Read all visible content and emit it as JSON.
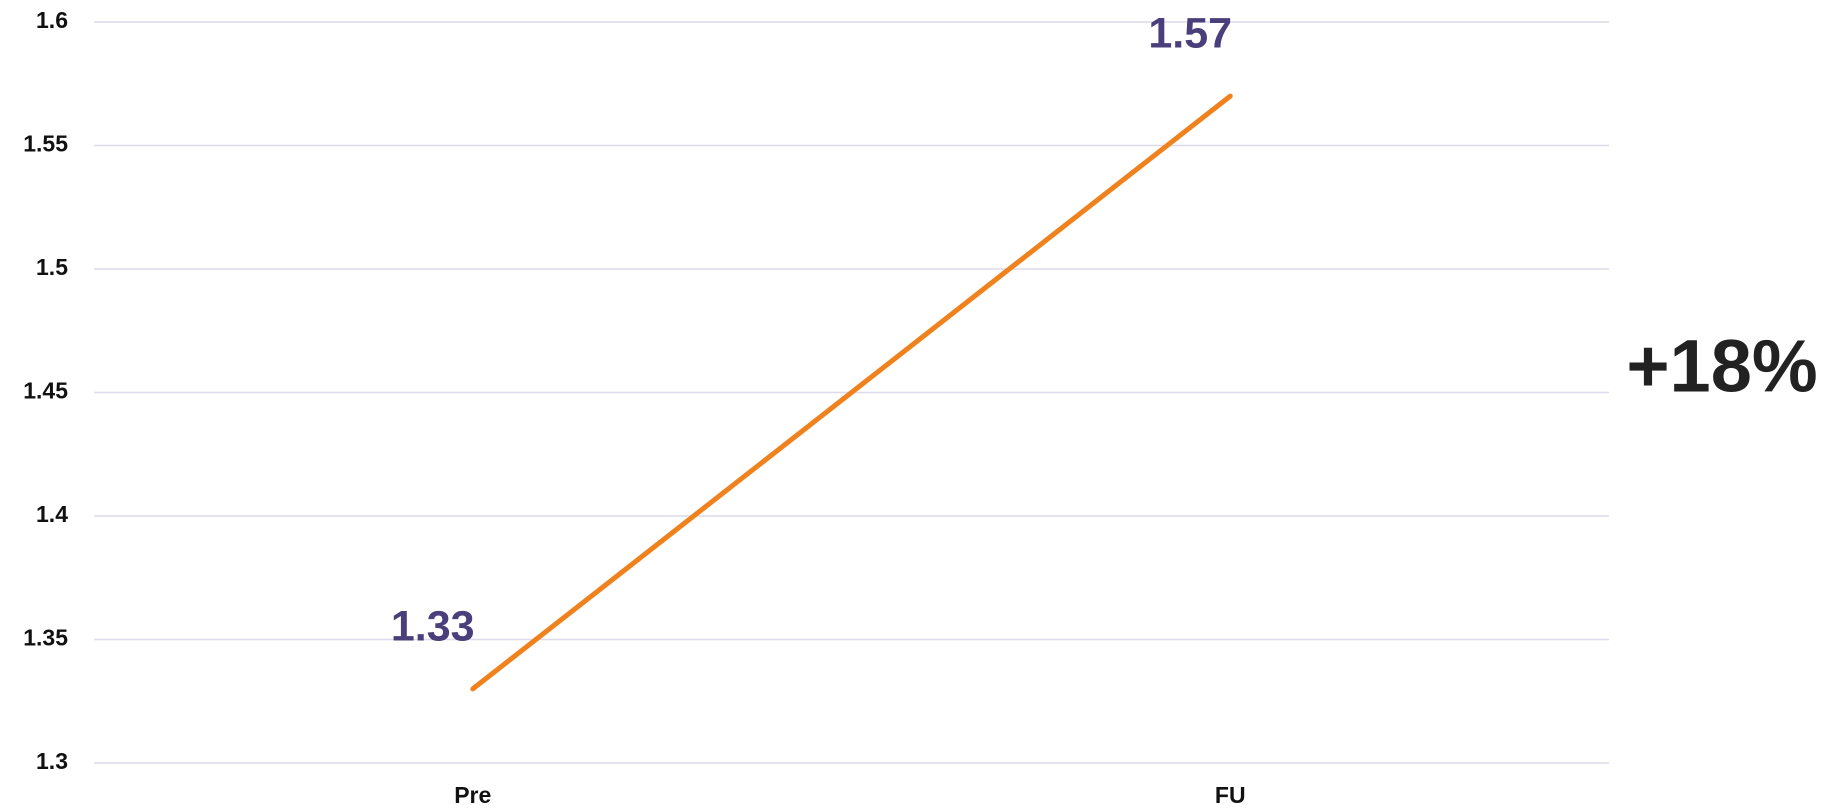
{
  "chart_data": {
    "type": "line",
    "categories": [
      "Pre",
      "FU"
    ],
    "series": [
      {
        "color": "#f0821e",
        "values": [
          1.33,
          1.57
        ]
      }
    ],
    "ylim": [
      1.3,
      1.6
    ],
    "yticks": [
      1.3,
      1.35,
      1.4,
      1.45,
      1.5,
      1.55,
      1.6
    ],
    "grid": true,
    "annotations": [
      "+18%"
    ]
  }
}
